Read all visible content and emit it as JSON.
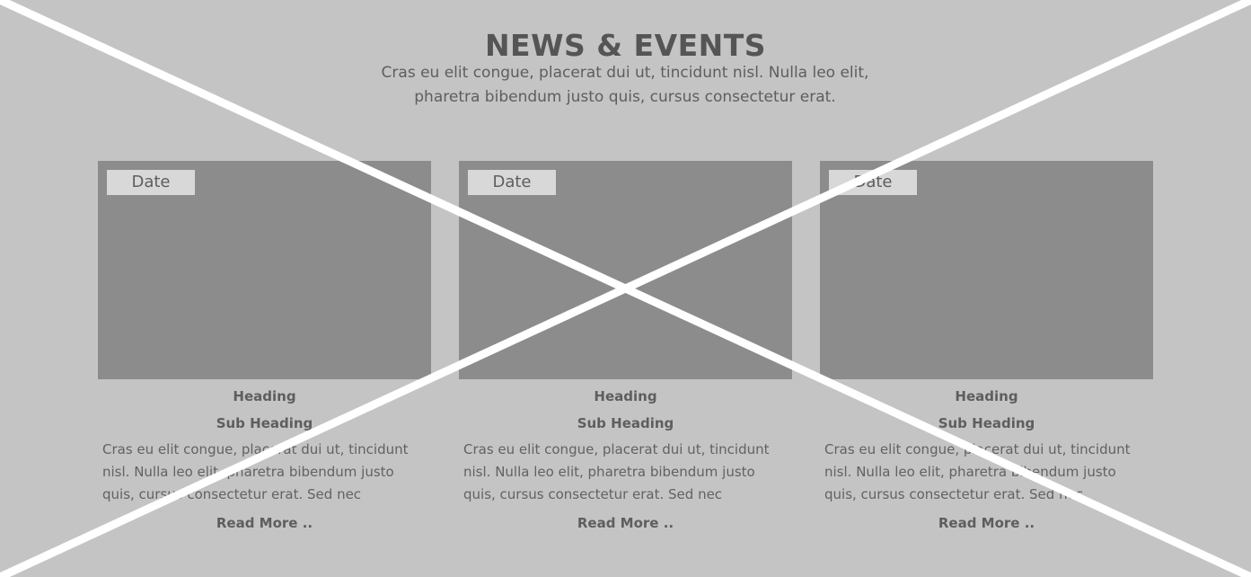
{
  "section": {
    "title": "NEWS & EVENTS",
    "intro": "Cras eu elit congue, placerat dui ut, tincidunt nisl. Nulla leo elit, pharetra bibendum justo quis, cursus consectetur erat."
  },
  "cards": [
    {
      "date": "Date",
      "heading": "Heading",
      "subheading": "Sub Heading",
      "body": "Cras eu elit congue, placerat dui ut, tincidunt nisl. Nulla leo elit, pharetra bibendum justo quis, cursus consectetur erat. Sed nec",
      "read_more": "Read More .."
    },
    {
      "date": "Date",
      "heading": "Heading",
      "subheading": "Sub Heading",
      "body": "Cras eu elit congue, placerat dui ut, tincidunt nisl. Nulla leo elit, pharetra bibendum justo quis, cursus consectetur erat. Sed nec",
      "read_more": "Read More .."
    },
    {
      "date": "Date",
      "heading": "Heading",
      "subheading": "Sub Heading",
      "body": "Cras eu elit congue, placerat dui ut, tincidunt nisl. Nulla leo elit, pharetra bibendum justo quis, cursus consectetur erat. Sed nec",
      "read_more": "Read More .."
    }
  ],
  "colors": {
    "background": "#c4c4c4",
    "image_placeholder": "#8c8c8c",
    "date_badge": "#d8d8d8",
    "text": "#5e5e5e",
    "placeholder_cross": "#ffffff"
  }
}
